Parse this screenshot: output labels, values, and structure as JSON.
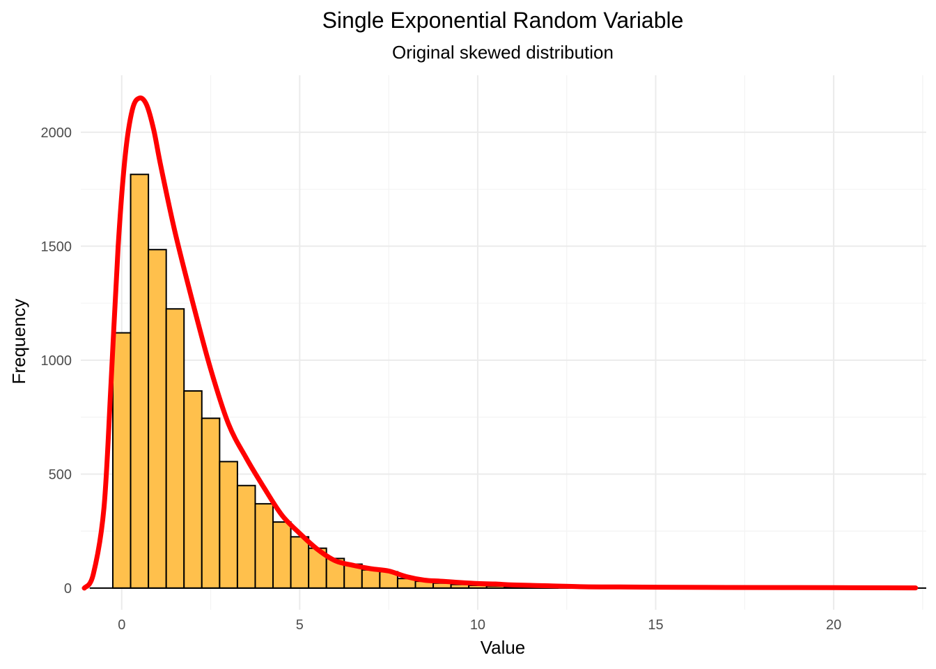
{
  "chart_data": {
    "type": "bar",
    "title": "Single Exponential Random Variable",
    "subtitle": "Original skewed distribution",
    "xlabel": "Value",
    "ylabel": "Frequency",
    "xlim": [
      -1.15,
      22.6
    ],
    "ylim": [
      -95,
      2250
    ],
    "x_ticks": [
      0,
      5,
      10,
      15,
      20
    ],
    "y_ticks": [
      0,
      500,
      1000,
      1500,
      2000
    ],
    "grid": true,
    "legend": "none",
    "bar_fill": "#FFC04C",
    "bar_stroke": "#000000",
    "line_color": "#FF0000",
    "bins": {
      "left": [
        -0.25,
        0.25,
        0.75,
        1.25,
        1.75,
        2.25,
        2.75,
        3.25,
        3.75,
        4.25,
        4.75,
        5.25,
        5.75,
        6.25,
        6.75,
        7.25,
        7.75,
        8.25,
        8.75,
        9.25,
        9.75,
        10.25,
        10.75,
        11.25,
        11.75
      ],
      "right": [
        0.25,
        0.75,
        1.25,
        1.75,
        2.25,
        2.75,
        3.25,
        3.75,
        4.25,
        4.75,
        5.25,
        5.75,
        6.25,
        6.75,
        7.25,
        7.75,
        8.25,
        8.75,
        9.25,
        9.75,
        10.25,
        10.75,
        11.25,
        11.75,
        12.25
      ],
      "counts": [
        1120,
        1815,
        1485,
        1225,
        865,
        745,
        555,
        450,
        370,
        290,
        225,
        175,
        130,
        105,
        80,
        72,
        42,
        30,
        22,
        16,
        12,
        9,
        6,
        4,
        3
      ]
    },
    "density_curve": {
      "x": [
        -1.05,
        -0.8,
        -0.5,
        -0.3,
        -0.1,
        0.1,
        0.3,
        0.5,
        0.7,
        0.9,
        1.1,
        1.5,
        2.0,
        2.5,
        3.0,
        3.5,
        4.0,
        4.5,
        5.0,
        5.5,
        6.0,
        6.5,
        7.0,
        7.5,
        8.0,
        8.5,
        9.0,
        10.0,
        10.5,
        11.0,
        12.0,
        13.0,
        14.0,
        15.0,
        17.0,
        20.0,
        22.3
      ],
      "y": [
        0,
        60,
        350,
        900,
        1500,
        1900,
        2100,
        2150,
        2120,
        2010,
        1850,
        1560,
        1250,
        960,
        720,
        570,
        440,
        320,
        240,
        170,
        120,
        100,
        85,
        75,
        50,
        35,
        30,
        20,
        18,
        14,
        10,
        6,
        5,
        4,
        3,
        2,
        1
      ]
    }
  }
}
